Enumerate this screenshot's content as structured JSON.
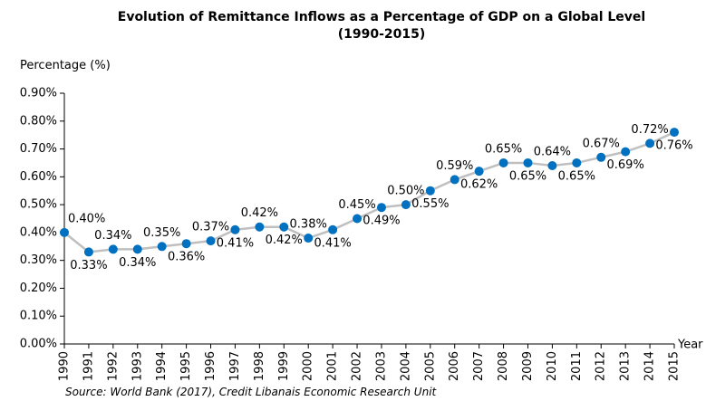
{
  "chart_data": {
    "type": "line",
    "title": "Evolution of Remittance Inflows as a Percentage of GDP on a Global Level (1990-2015)",
    "ylabel": "Percentage (%)",
    "xlabel": "Year",
    "source": "Source: World Bank (2017), Credit Libanais Economic Research Unit",
    "categories": [
      "1990",
      "1991",
      "1992",
      "1993",
      "1994",
      "1995",
      "1996",
      "1997",
      "1998",
      "1999",
      "2000",
      "2001",
      "2002",
      "2003",
      "2004",
      "2005",
      "2006",
      "2007",
      "2008",
      "2009",
      "2010",
      "2011",
      "2012",
      "2013",
      "2014",
      "2015"
    ],
    "series": [
      {
        "name": "Remittance Inflows (% of GDP)",
        "color": "#0070c0",
        "line_color": "#bfbfbf",
        "values": [
          0.4,
          0.33,
          0.34,
          0.34,
          0.35,
          0.36,
          0.37,
          0.41,
          0.42,
          0.42,
          0.38,
          0.41,
          0.45,
          0.49,
          0.5,
          0.55,
          0.59,
          0.62,
          0.65,
          0.65,
          0.64,
          0.65,
          0.67,
          0.69,
          0.72,
          0.76
        ],
        "value_labels": [
          "0.40%",
          "0.33%",
          "0.34%",
          "0.34%",
          "0.35%",
          "0.36%",
          "0.37%",
          "0.41%",
          "0.42%",
          "0.42%",
          "0.38%",
          "0.41%",
          "0.45%",
          "0.49%",
          "0.50%",
          "0.55%",
          "0.59%",
          "0.62%",
          "0.65%",
          "0.65%",
          "0.64%",
          "0.65%",
          "0.67%",
          "0.69%",
          "0.72%",
          "0.76%"
        ]
      }
    ],
    "ylim": [
      0,
      0.9
    ],
    "yticks": [
      {
        "value": 0,
        "label": "0.00%"
      },
      {
        "value": 0.1,
        "label": "0.10%"
      },
      {
        "value": 0.2,
        "label": "0.20%"
      },
      {
        "value": 0.3,
        "label": "0.30%"
      },
      {
        "value": 0.4,
        "label": "0.40%"
      },
      {
        "value": 0.5,
        "label": "0.50%"
      },
      {
        "value": 0.6,
        "label": "0.60%"
      },
      {
        "value": 0.7,
        "label": "0.70%"
      },
      {
        "value": 0.8,
        "label": "0.80%"
      },
      {
        "value": 0.9,
        "label": "0.90%"
      }
    ],
    "grid": false,
    "legend": false
  }
}
